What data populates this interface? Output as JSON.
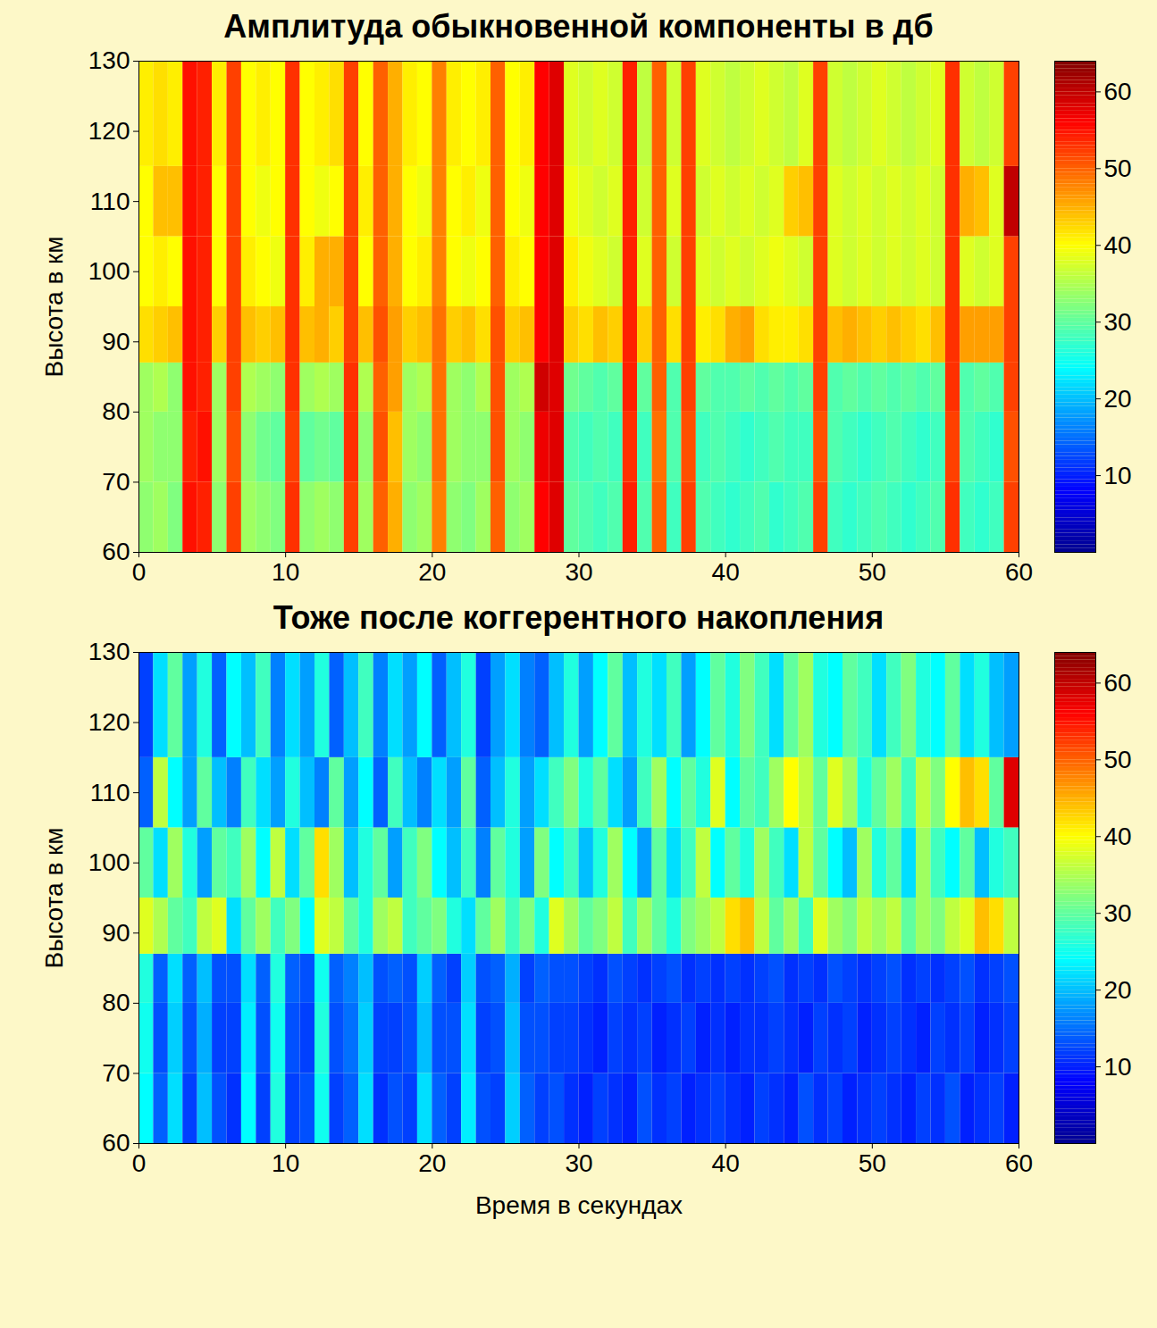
{
  "chart_data": [
    {
      "type": "heatmap",
      "title": "Амплитуда обыкновенной компоненты в дб",
      "ylabel": "Высота в км",
      "x": [
        0,
        1,
        2,
        3,
        4,
        5,
        6,
        7,
        8,
        9,
        10,
        11,
        12,
        13,
        14,
        15,
        16,
        17,
        18,
        19,
        20,
        21,
        22,
        23,
        24,
        25,
        26,
        27,
        28,
        29,
        30,
        31,
        32,
        33,
        34,
        35,
        36,
        37,
        38,
        39,
        40,
        41,
        42,
        43,
        44,
        45,
        46,
        47,
        48,
        49,
        50,
        51,
        52,
        53,
        54,
        55,
        56,
        57,
        58,
        59,
        60
      ],
      "y": [
        60,
        70,
        80,
        87,
        95,
        105,
        115,
        130
      ],
      "xlim": [
        0,
        60
      ],
      "ylim": [
        60,
        130
      ],
      "xticks": [
        0,
        10,
        20,
        30,
        40,
        50,
        60
      ],
      "yticks": [
        60,
        70,
        80,
        90,
        100,
        110,
        120,
        130
      ],
      "colorbar": {
        "range": [
          0,
          64
        ],
        "ticks": [
          10,
          20,
          30,
          40,
          50,
          60
        ]
      },
      "values": [
        [
          33,
          34,
          32,
          55,
          54,
          33,
          52,
          34,
          33,
          32,
          53,
          33,
          34,
          33,
          52,
          34,
          50,
          45,
          33,
          34,
          48,
          33,
          32,
          34,
          50,
          33,
          34,
          56,
          58,
          30,
          29,
          28,
          29,
          54,
          29,
          50,
          28,
          52,
          29,
          28,
          27,
          28,
          29,
          27,
          28,
          29,
          52,
          28,
          27,
          28,
          29,
          28,
          27,
          28,
          29,
          53,
          28,
          27,
          28,
          52
        ],
        [
          34,
          33,
          33,
          54,
          55,
          34,
          51,
          33,
          31,
          30,
          52,
          30,
          31,
          30,
          53,
          33,
          51,
          44,
          34,
          33,
          49,
          34,
          33,
          33,
          51,
          34,
          33,
          57,
          58,
          29,
          28,
          29,
          28,
          53,
          28,
          49,
          29,
          51,
          28,
          29,
          28,
          27,
          28,
          29,
          28,
          28,
          51,
          29,
          28,
          27,
          28,
          29,
          28,
          27,
          28,
          52,
          29,
          28,
          27,
          51
        ],
        [
          34,
          35,
          33,
          55,
          54,
          34,
          52,
          35,
          34,
          33,
          53,
          34,
          35,
          34,
          53,
          35,
          50,
          46,
          34,
          35,
          49,
          34,
          33,
          35,
          51,
          34,
          35,
          59,
          58,
          31,
          30,
          29,
          30,
          54,
          30,
          50,
          29,
          52,
          30,
          29,
          29,
          30,
          29,
          30,
          29,
          30,
          52,
          29,
          30,
          29,
          30,
          29,
          30,
          29,
          30,
          53,
          29,
          30,
          29,
          52
        ],
        [
          42,
          43,
          44,
          55,
          54,
          43,
          52,
          44,
          43,
          44,
          53,
          44,
          45,
          43,
          52,
          44,
          51,
          46,
          43,
          44,
          49,
          43,
          44,
          42,
          51,
          43,
          44,
          56,
          58,
          43,
          42,
          44,
          43,
          54,
          43,
          50,
          42,
          52,
          41,
          42,
          45,
          46,
          42,
          41,
          41,
          42,
          52,
          44,
          45,
          44,
          43,
          44,
          43,
          42,
          44,
          53,
          46,
          46,
          46,
          52
        ],
        [
          40,
          41,
          40,
          55,
          54,
          40,
          52,
          41,
          40,
          39,
          53,
          41,
          45,
          45,
          52,
          40,
          50,
          45,
          40,
          41,
          48,
          40,
          39,
          40,
          50,
          41,
          40,
          56,
          58,
          41,
          39,
          38,
          37,
          54,
          38,
          50,
          37,
          52,
          38,
          37,
          38,
          37,
          38,
          39,
          38,
          37,
          52,
          38,
          37,
          38,
          37,
          38,
          37,
          38,
          37,
          53,
          38,
          37,
          38,
          52
        ],
        [
          40,
          44,
          44,
          55,
          54,
          40,
          52,
          40,
          39,
          40,
          53,
          40,
          39,
          40,
          52,
          41,
          50,
          45,
          40,
          39,
          48,
          40,
          41,
          39,
          50,
          40,
          39,
          56,
          58,
          39,
          38,
          37,
          38,
          54,
          37,
          50,
          38,
          52,
          37,
          38,
          37,
          38,
          37,
          38,
          43,
          44,
          52,
          38,
          37,
          38,
          37,
          38,
          37,
          38,
          37,
          53,
          45,
          44,
          38,
          60
        ],
        [
          41,
          42,
          41,
          55,
          54,
          41,
          52,
          40,
          41,
          40,
          53,
          40,
          41,
          42,
          52,
          40,
          50,
          45,
          41,
          40,
          48,
          41,
          40,
          41,
          50,
          40,
          41,
          56,
          58,
          38,
          37,
          38,
          37,
          54,
          36,
          50,
          37,
          52,
          38,
          37,
          36,
          37,
          38,
          37,
          36,
          38,
          52,
          37,
          36,
          37,
          38,
          37,
          36,
          37,
          38,
          53,
          37,
          36,
          37,
          52
        ]
      ]
    },
    {
      "type": "heatmap",
      "title": "Тоже после коггерентного накопления",
      "xlabel": "Время в секундах",
      "ylabel": "Высота в км",
      "x": [
        0,
        1,
        2,
        3,
        4,
        5,
        6,
        7,
        8,
        9,
        10,
        11,
        12,
        13,
        14,
        15,
        16,
        17,
        18,
        19,
        20,
        21,
        22,
        23,
        24,
        25,
        26,
        27,
        28,
        29,
        30,
        31,
        32,
        33,
        34,
        35,
        36,
        37,
        38,
        39,
        40,
        41,
        42,
        43,
        44,
        45,
        46,
        47,
        48,
        49,
        50,
        51,
        52,
        53,
        54,
        55,
        56,
        57,
        58,
        59,
        60
      ],
      "y": [
        60,
        70,
        80,
        87,
        95,
        105,
        115,
        130
      ],
      "xlim": [
        0,
        60
      ],
      "ylim": [
        60,
        130
      ],
      "xticks": [
        0,
        10,
        20,
        30,
        40,
        50,
        60
      ],
      "yticks": [
        60,
        70,
        80,
        90,
        100,
        110,
        120,
        130
      ],
      "colorbar": {
        "range": [
          0,
          64
        ],
        "ticks": [
          10,
          20,
          30,
          40,
          50,
          60
        ]
      },
      "values": [
        [
          24,
          14,
          22,
          12,
          20,
          13,
          11,
          24,
          12,
          26,
          12,
          13,
          25,
          12,
          14,
          22,
          11,
          13,
          12,
          22,
          14,
          12,
          23,
          13,
          12,
          21,
          14,
          12,
          13,
          11,
          10,
          12,
          11,
          10,
          13,
          11,
          12,
          10,
          11,
          12,
          11,
          10,
          12,
          11,
          10,
          13,
          11,
          12,
          10,
          11,
          12,
          11,
          10,
          12,
          11,
          13,
          10,
          11,
          12,
          10
        ],
        [
          25,
          13,
          21,
          13,
          19,
          12,
          12,
          23,
          13,
          25,
          13,
          12,
          26,
          13,
          15,
          21,
          12,
          12,
          13,
          20,
          13,
          13,
          22,
          12,
          13,
          20,
          13,
          13,
          12,
          12,
          11,
          10,
          12,
          11,
          12,
          10,
          11,
          12,
          10,
          11,
          10,
          11,
          11,
          12,
          11,
          10,
          12,
          11,
          12,
          10,
          11,
          12,
          11,
          10,
          12,
          11,
          12,
          10,
          11,
          12
        ],
        [
          26,
          14,
          22,
          14,
          20,
          13,
          13,
          22,
          14,
          26,
          14,
          13,
          25,
          14,
          16,
          20,
          13,
          14,
          13,
          21,
          14,
          12,
          21,
          13,
          14,
          19,
          12,
          14,
          13,
          13,
          12,
          11,
          13,
          12,
          11,
          12,
          13,
          11,
          12,
          11,
          12,
          11,
          12,
          13,
          11,
          12,
          11,
          13,
          12,
          11,
          12,
          13,
          11,
          12,
          11,
          12,
          13,
          11,
          12,
          13
        ],
        [
          38,
          35,
          30,
          28,
          36,
          38,
          22,
          30,
          34,
          28,
          32,
          24,
          38,
          36,
          30,
          26,
          34,
          36,
          28,
          30,
          32,
          26,
          22,
          30,
          34,
          28,
          32,
          26,
          38,
          34,
          30,
          32,
          36,
          28,
          34,
          30,
          26,
          32,
          34,
          36,
          42,
          44,
          36,
          30,
          34,
          28,
          38,
          34,
          32,
          36,
          34,
          36,
          30,
          34,
          32,
          36,
          38,
          44,
          42,
          36
        ],
        [
          30,
          22,
          34,
          26,
          18,
          30,
          28,
          34,
          24,
          36,
          22,
          30,
          42,
          34,
          20,
          26,
          30,
          18,
          28,
          32,
          24,
          20,
          28,
          16,
          30,
          26,
          18,
          32,
          24,
          28,
          20,
          26,
          34,
          24,
          18,
          30,
          22,
          28,
          36,
          24,
          30,
          26,
          34,
          28,
          22,
          36,
          30,
          24,
          20,
          34,
          26,
          30,
          22,
          34,
          28,
          24,
          30,
          20,
          26,
          28
        ],
        [
          14,
          36,
          24,
          18,
          30,
          20,
          16,
          28,
          22,
          18,
          26,
          20,
          16,
          30,
          18,
          24,
          14,
          28,
          20,
          16,
          22,
          18,
          30,
          14,
          20,
          26,
          18,
          22,
          28,
          32,
          26,
          30,
          22,
          18,
          28,
          34,
          24,
          30,
          26,
          38,
          24,
          30,
          28,
          34,
          40,
          36,
          30,
          38,
          34,
          26,
          30,
          34,
          28,
          36,
          32,
          40,
          44,
          42,
          30,
          58
        ],
        [
          12,
          22,
          30,
          18,
          26,
          14,
          24,
          20,
          28,
          16,
          22,
          18,
          26,
          14,
          20,
          28,
          16,
          22,
          18,
          24,
          14,
          20,
          26,
          12,
          18,
          22,
          16,
          14,
          20,
          26,
          18,
          24,
          30,
          20,
          26,
          22,
          28,
          18,
          24,
          30,
          26,
          32,
          28,
          22,
          30,
          34,
          26,
          24,
          30,
          28,
          22,
          28,
          32,
          26,
          24,
          30,
          22,
          26,
          20,
          18
        ]
      ]
    }
  ]
}
